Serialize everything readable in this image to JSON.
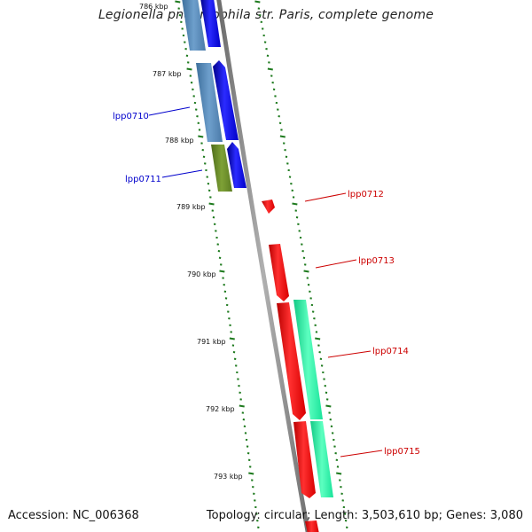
{
  "title": "Legionella pneumophila str. Paris, complete genome",
  "accession": "Accession: NC_006368",
  "summary": "Topology: circular; Length: 3,503,610 bp; Genes: 3,080",
  "colors": {
    "backbone": "#8a8a8a",
    "tick": "#1e7a1e",
    "forward_cds": "#0000ff",
    "forward_gene": "#4f86b8",
    "forward_gene_alt": "#6b8e23",
    "reverse_cds": "#ff0000",
    "reverse_gene": "#19f0a0",
    "label_forward": "#0000cc",
    "label_reverse": "#cc0000"
  },
  "scale_labels": [
    "786 kbp",
    "787 kbp",
    "788 kbp",
    "789 kbp",
    "790 kbp",
    "791 kbp",
    "792 kbp",
    "793 kbp"
  ],
  "genes": [
    {
      "label": "",
      "strand": "forward"
    },
    {
      "label": "lpp0710",
      "strand": "forward"
    },
    {
      "label": "lpp0711",
      "strand": "forward"
    },
    {
      "label": "lpp0712",
      "strand": "reverse"
    },
    {
      "label": "lpp0713",
      "strand": "reverse"
    },
    {
      "label": "lpp0714",
      "strand": "reverse"
    },
    {
      "label": "lpp0715",
      "strand": "reverse"
    }
  ]
}
